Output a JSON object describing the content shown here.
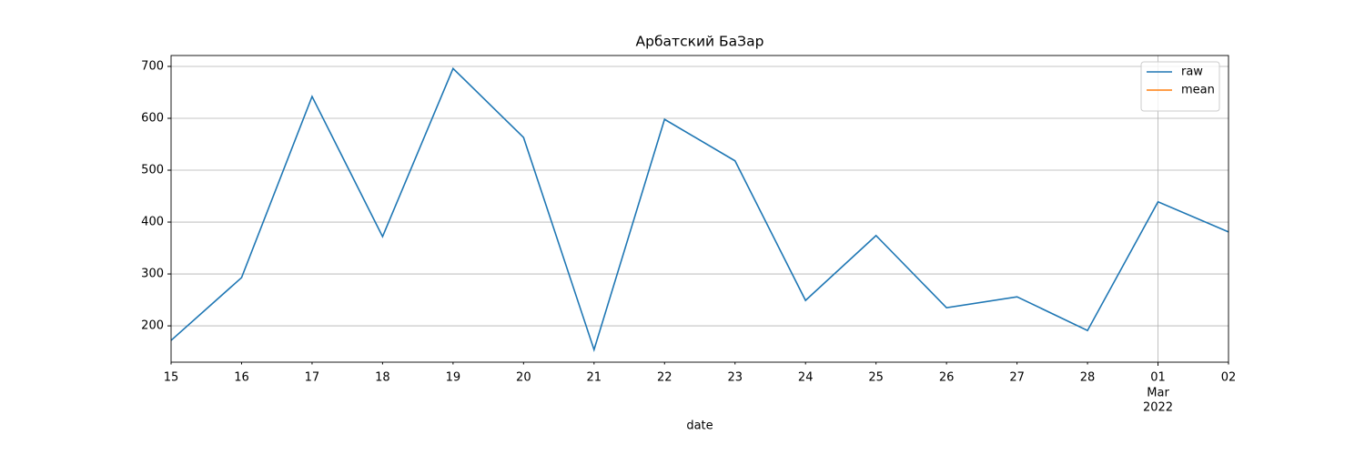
{
  "chart_data": {
    "type": "line",
    "title": "Арбатский БаЗар",
    "x_label": "date",
    "categories": [
      "15",
      "16",
      "17",
      "18",
      "19",
      "20",
      "21",
      "22",
      "23",
      "24",
      "25",
      "26",
      "27",
      "28",
      "01",
      "02"
    ],
    "major_tick": {
      "category": "01",
      "lines": [
        "Mar",
        "2022"
      ]
    },
    "series": [
      {
        "name": "raw",
        "color": "#1f77b4",
        "values": [
          172,
          293,
          642,
          372,
          696,
          563,
          154,
          598,
          518,
          249,
          374,
          235,
          256,
          191,
          439,
          381
        ]
      },
      {
        "name": "mean",
        "color": "#ff7f0e",
        "values": [
          null,
          null,
          null,
          null,
          null,
          null,
          null,
          null,
          null,
          null,
          null,
          null,
          null,
          null,
          null,
          null
        ]
      }
    ],
    "ylim": [
      130,
      721
    ],
    "yticks": [
      200,
      300,
      400,
      500,
      600,
      700
    ],
    "grid": true,
    "legend": "upper right"
  }
}
